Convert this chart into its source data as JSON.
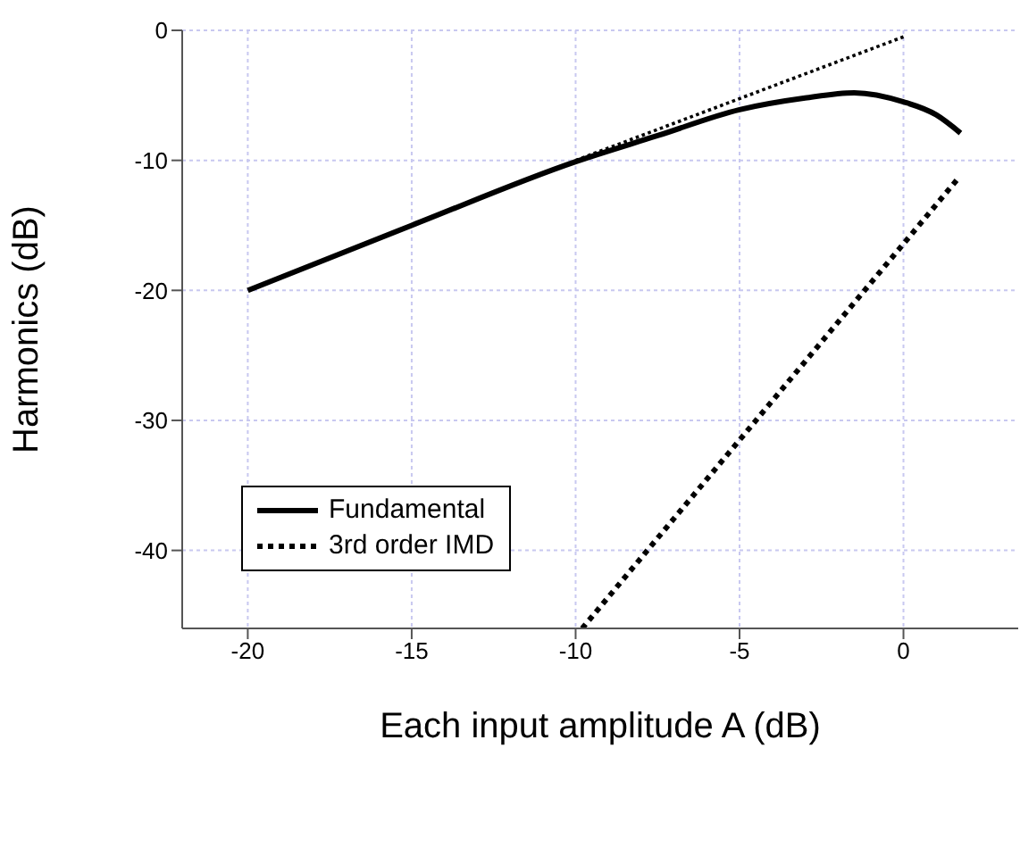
{
  "chart_data": {
    "type": "line",
    "xlabel": "Each input amplitude A (dB)",
    "ylabel": "Harmonics (dB)",
    "xlim": [
      -22,
      3.5
    ],
    "ylim": [
      -46,
      0
    ],
    "xticks": [
      -20,
      -15,
      -10,
      -5,
      0
    ],
    "yticks": [
      -40,
      -30,
      -20,
      -10,
      0
    ],
    "grid": true,
    "legend": "left",
    "marker": "none",
    "series": [
      {
        "name": "Fundamental",
        "color": "#000000",
        "line_style": "solid",
        "x": [
          -20,
          -15,
          -10,
          -7.5,
          -5,
          -3,
          -1.5,
          0,
          1,
          1.74
        ],
        "values": [
          -20,
          -15,
          -10.1,
          -8.1,
          -6.1,
          -5.2,
          -4.8,
          -5.5,
          -6.5,
          -7.9
        ]
      },
      {
        "color": "#000000",
        "line_style": "dotted",
        "x": [
          -10,
          0
        ],
        "values": [
          -10,
          -0.5
        ]
      },
      {
        "name": "3rd order IMD",
        "color": "#000000",
        "line_style": "dotted",
        "x": [
          -9.8,
          1.63
        ],
        "values": [
          -46,
          -11.5
        ]
      }
    ]
  }
}
